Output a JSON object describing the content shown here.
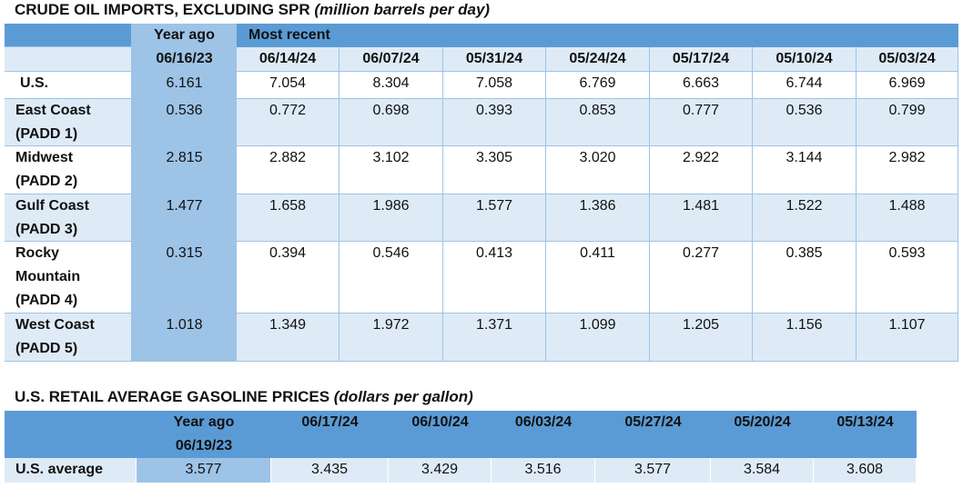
{
  "crude": {
    "title": "CRUDE OIL IMPORTS, EXCLUDING SPR",
    "units": "(million barrels per day)",
    "header": {
      "year_ago": "Year ago",
      "most_recent": "Most recent",
      "dates": [
        "06/16/23",
        "06/14/24",
        "06/07/24",
        "05/31/24",
        "05/24/24",
        "05/17/24",
        "05/10/24",
        "05/03/24"
      ]
    },
    "rows": [
      {
        "label_lines": [
          "U.S."
        ],
        "values": [
          "6.161",
          "7.054",
          "8.304",
          "7.058",
          "6.769",
          "6.663",
          "6.744",
          "6.969"
        ]
      },
      {
        "label_lines": [
          "East Coast",
          "(PADD 1)"
        ],
        "values": [
          "0.536",
          "0.772",
          "0.698",
          "0.393",
          "0.853",
          "0.777",
          "0.536",
          "0.799"
        ]
      },
      {
        "label_lines": [
          "Midwest",
          "(PADD 2)"
        ],
        "values": [
          "2.815",
          "2.882",
          "3.102",
          "3.305",
          "3.020",
          "2.922",
          "3.144",
          "2.982"
        ]
      },
      {
        "label_lines": [
          "Gulf Coast",
          "(PADD 3)"
        ],
        "values": [
          "1.477",
          "1.658",
          "1.986",
          "1.577",
          "1.386",
          "1.481",
          "1.522",
          "1.488"
        ]
      },
      {
        "label_lines": [
          "Rocky",
          "Mountain",
          "(PADD 4)"
        ],
        "values": [
          "0.315",
          "0.394",
          "0.546",
          "0.413",
          "0.411",
          "0.277",
          "0.385",
          "0.593"
        ]
      },
      {
        "label_lines": [
          "West Coast",
          "(PADD 5)"
        ],
        "values": [
          "1.018",
          "1.349",
          "1.972",
          "1.371",
          "1.099",
          "1.205",
          "1.156",
          "1.107"
        ]
      }
    ]
  },
  "gasoline": {
    "title": "U.S. RETAIL AVERAGE GASOLINE PRICES",
    "units": "(dollars per gallon)",
    "header": {
      "year_ago": "Year ago",
      "year_ago_date": "06/19/23",
      "dates": [
        "06/17/24",
        "06/10/24",
        "06/03/24",
        "05/27/24",
        "05/20/24",
        "05/13/24"
      ]
    },
    "row": {
      "label": "U.S. average",
      "values": [
        "3.577",
        "3.435",
        "3.429",
        "3.516",
        "3.577",
        "3.584",
        "3.608"
      ]
    }
  }
}
